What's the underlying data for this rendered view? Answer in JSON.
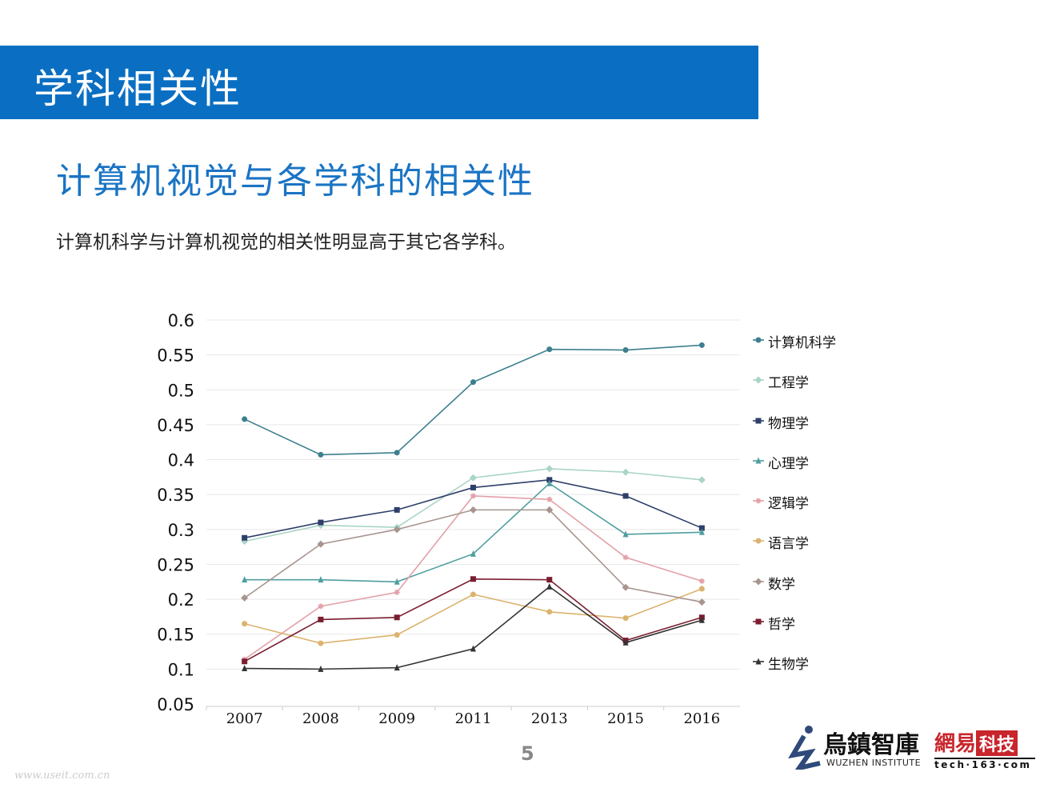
{
  "header": {
    "title": "学科相关性"
  },
  "subtitle": "计算机视觉与各学科的相关性",
  "description": "计算机科学与计算机视觉的相关性明显高于其它各学科。",
  "page_number": "5",
  "watermark_url": "www.useit.com.cn",
  "logos": {
    "wuzhen_cn": "烏鎮智庫",
    "wuzhen_en": "WUZHEN  INSTITUTE",
    "netease_a": "網易",
    "netease_b": "科技",
    "netease_url": "tech·163·com"
  },
  "chart_data": {
    "type": "line",
    "categories": [
      "2007",
      "2008",
      "2009",
      "2011",
      "2013",
      "2015",
      "2016"
    ],
    "ylim": [
      0.05,
      0.6
    ],
    "yticks": [
      "0.05",
      "0.1",
      "0.15",
      "0.2",
      "0.25",
      "0.3",
      "0.35",
      "0.4",
      "0.45",
      "0.5",
      "0.55",
      "0.6"
    ],
    "grid": true,
    "legend_position": "right",
    "series": [
      {
        "name": "计算机科学",
        "color": "#3d7f8f",
        "marker": "circle",
        "values": [
          0.458,
          0.407,
          0.41,
          0.511,
          0.558,
          0.557,
          0.564
        ]
      },
      {
        "name": "工程学",
        "color": "#a8d5c6",
        "marker": "diamond",
        "values": [
          0.283,
          0.306,
          0.303,
          0.374,
          0.387,
          0.382,
          0.371
        ]
      },
      {
        "name": "物理学",
        "color": "#2e3f6a",
        "marker": "square",
        "values": [
          0.288,
          0.31,
          0.328,
          0.36,
          0.371,
          0.348,
          0.302
        ]
      },
      {
        "name": "心理学",
        "color": "#4f9ea0",
        "marker": "triangle",
        "values": [
          0.228,
          0.228,
          0.225,
          0.265,
          0.366,
          0.293,
          0.296
        ]
      },
      {
        "name": "逻辑学",
        "color": "#e3a0a8",
        "marker": "star",
        "values": [
          0.114,
          0.19,
          0.21,
          0.348,
          0.343,
          0.26,
          0.226
        ]
      },
      {
        "name": "语言学",
        "color": "#dcb36e",
        "marker": "circle",
        "values": [
          0.165,
          0.137,
          0.149,
          0.207,
          0.182,
          0.173,
          0.215
        ]
      },
      {
        "name": "数学",
        "color": "#a8958f",
        "marker": "diamond",
        "values": [
          0.202,
          0.279,
          0.3,
          0.328,
          0.328,
          0.217,
          0.196
        ]
      },
      {
        "name": "哲学",
        "color": "#7a1e30",
        "marker": "square",
        "values": [
          0.111,
          0.171,
          0.174,
          0.229,
          0.228,
          0.141,
          0.174
        ]
      },
      {
        "name": "生物学",
        "color": "#333333",
        "marker": "triangle",
        "values": [
          0.101,
          0.1,
          0.102,
          0.129,
          0.218,
          0.138,
          0.17
        ]
      }
    ]
  }
}
